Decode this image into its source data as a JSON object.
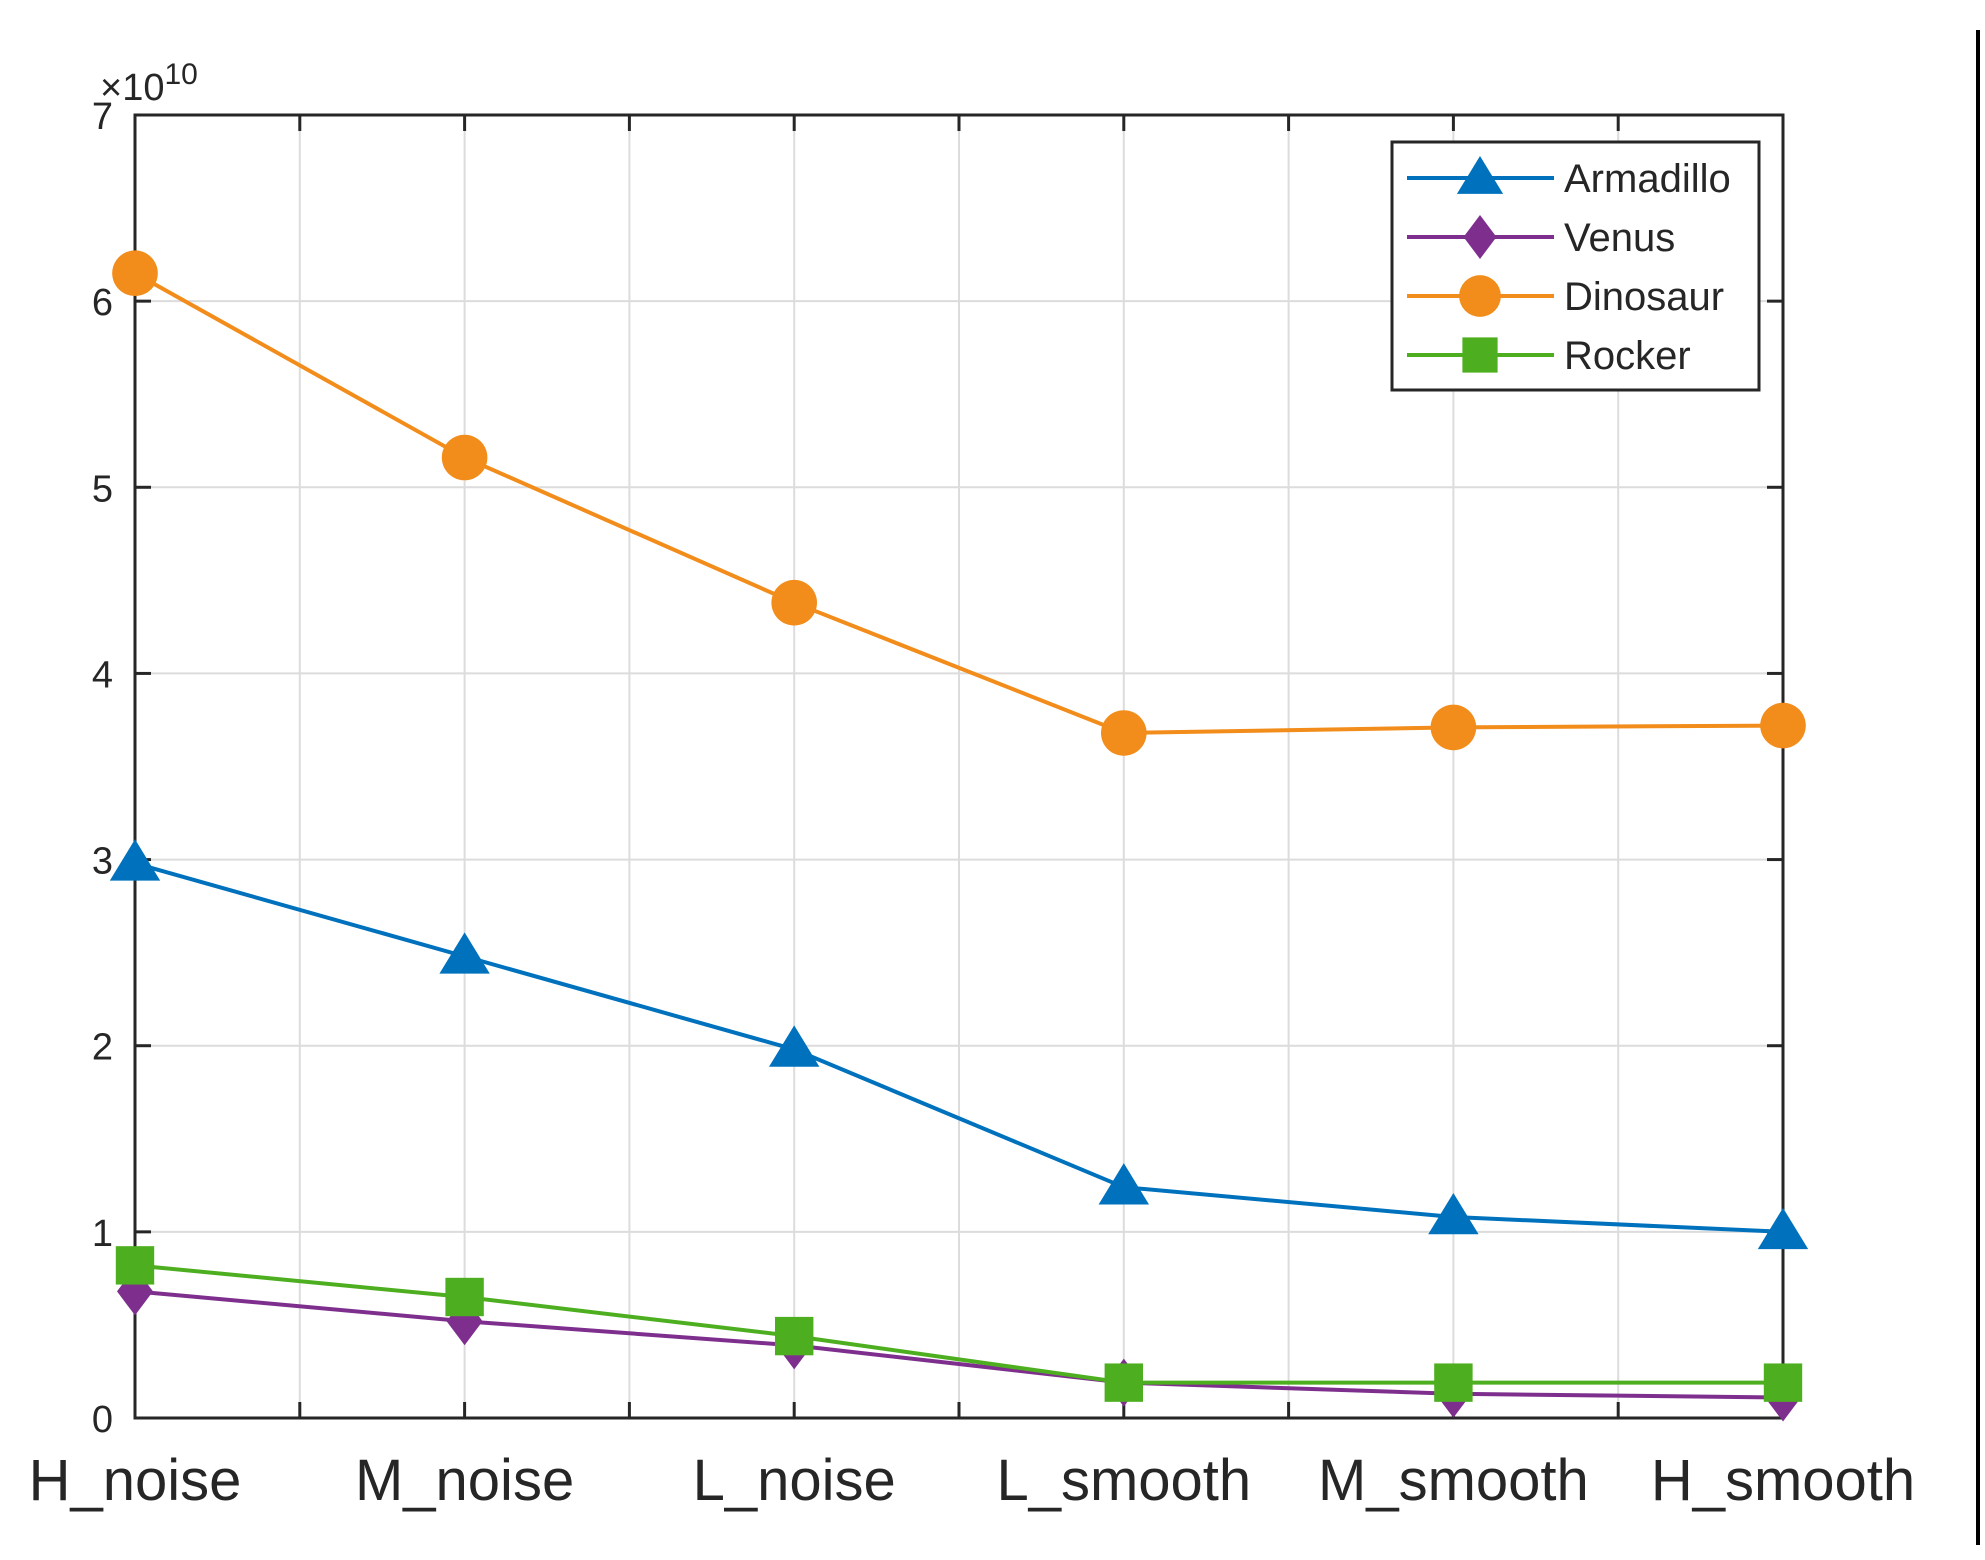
{
  "chart_data": {
    "type": "line",
    "title": "",
    "xlabel": "",
    "ylabel": "",
    "y_exponent_label": "×10",
    "y_exponent_power": "10",
    "categories": [
      "H_noise",
      "M_noise",
      "L_noise",
      "L_smooth",
      "M_smooth",
      "H_smooth"
    ],
    "ylim": [
      0,
      70000000000
    ],
    "yticks": [
      0,
      10000000000,
      20000000000,
      30000000000,
      40000000000,
      50000000000,
      60000000000,
      70000000000
    ],
    "ytick_labels": [
      "0",
      "1",
      "2",
      "3",
      "4",
      "5",
      "6",
      "7"
    ],
    "grid": true,
    "legend_position": "top-right",
    "series": [
      {
        "name": "Armadillo",
        "color": "#0072BD",
        "marker": "triangle",
        "values": [
          29800000000,
          24800000000,
          19800000000,
          12400000000,
          10800000000,
          10000000000
        ]
      },
      {
        "name": "Venus",
        "color": "#7E2F8E",
        "marker": "diamond",
        "values": [
          6800000000,
          5200000000,
          3900000000,
          1900000000,
          1300000000,
          1100000000
        ]
      },
      {
        "name": "Dinosaur",
        "color": "#F28C1A",
        "marker": "circle",
        "values": [
          61500000000,
          51600000000,
          43800000000,
          36800000000,
          37100000000,
          37200000000
        ]
      },
      {
        "name": "Rocker",
        "color": "#4DAF1F",
        "marker": "square",
        "values": [
          8200000000,
          6500000000,
          4400000000,
          1900000000,
          1900000000,
          1900000000
        ]
      }
    ]
  }
}
